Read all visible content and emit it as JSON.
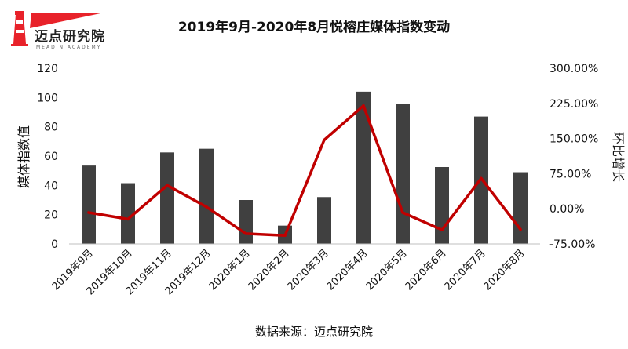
{
  "logo": {
    "text": "迈点研究院",
    "subtext": "MEADIN ACADEMY",
    "colors": {
      "red": "#e8222a",
      "dark": "#222222"
    }
  },
  "source_text": "数据来源：迈点研究院",
  "chart_data": {
    "type": "bar",
    "title": "2019年9月-2020年8月悦榕庄媒体指数变动",
    "categories": [
      "2019年9月",
      "2019年10月",
      "2019年11月",
      "2019年12月",
      "2020年1月",
      "2020年2月",
      "2020年3月",
      "2020年4月",
      "2020年5月",
      "2020年6月",
      "2020年7月",
      "2020年8月"
    ],
    "ylabel": "媒体指数值",
    "y2label": "环比增长",
    "ylim": [
      0,
      120
    ],
    "yticks": [
      "0",
      "20",
      "40",
      "60",
      "80",
      "100",
      "120"
    ],
    "y2lim": [
      -75,
      300
    ],
    "y2ticks": [
      "-75.00%",
      "0.00%",
      "75.00%",
      "150.00%",
      "225.00%",
      "300.00%"
    ],
    "series": [
      {
        "type": "bar",
        "values": [
          53.5,
          41.5,
          62.5,
          65,
          30,
          12.5,
          32,
          104,
          95.5,
          52.5,
          87,
          49
        ],
        "color": "#404040"
      },
      {
        "type": "line",
        "axis": "right",
        "values": [
          -8,
          -22,
          50,
          4,
          -53,
          -57,
          147,
          220,
          -8,
          -45,
          65,
          -44
        ],
        "color": "#c00000"
      }
    ],
    "grid": false,
    "legend": "none"
  }
}
